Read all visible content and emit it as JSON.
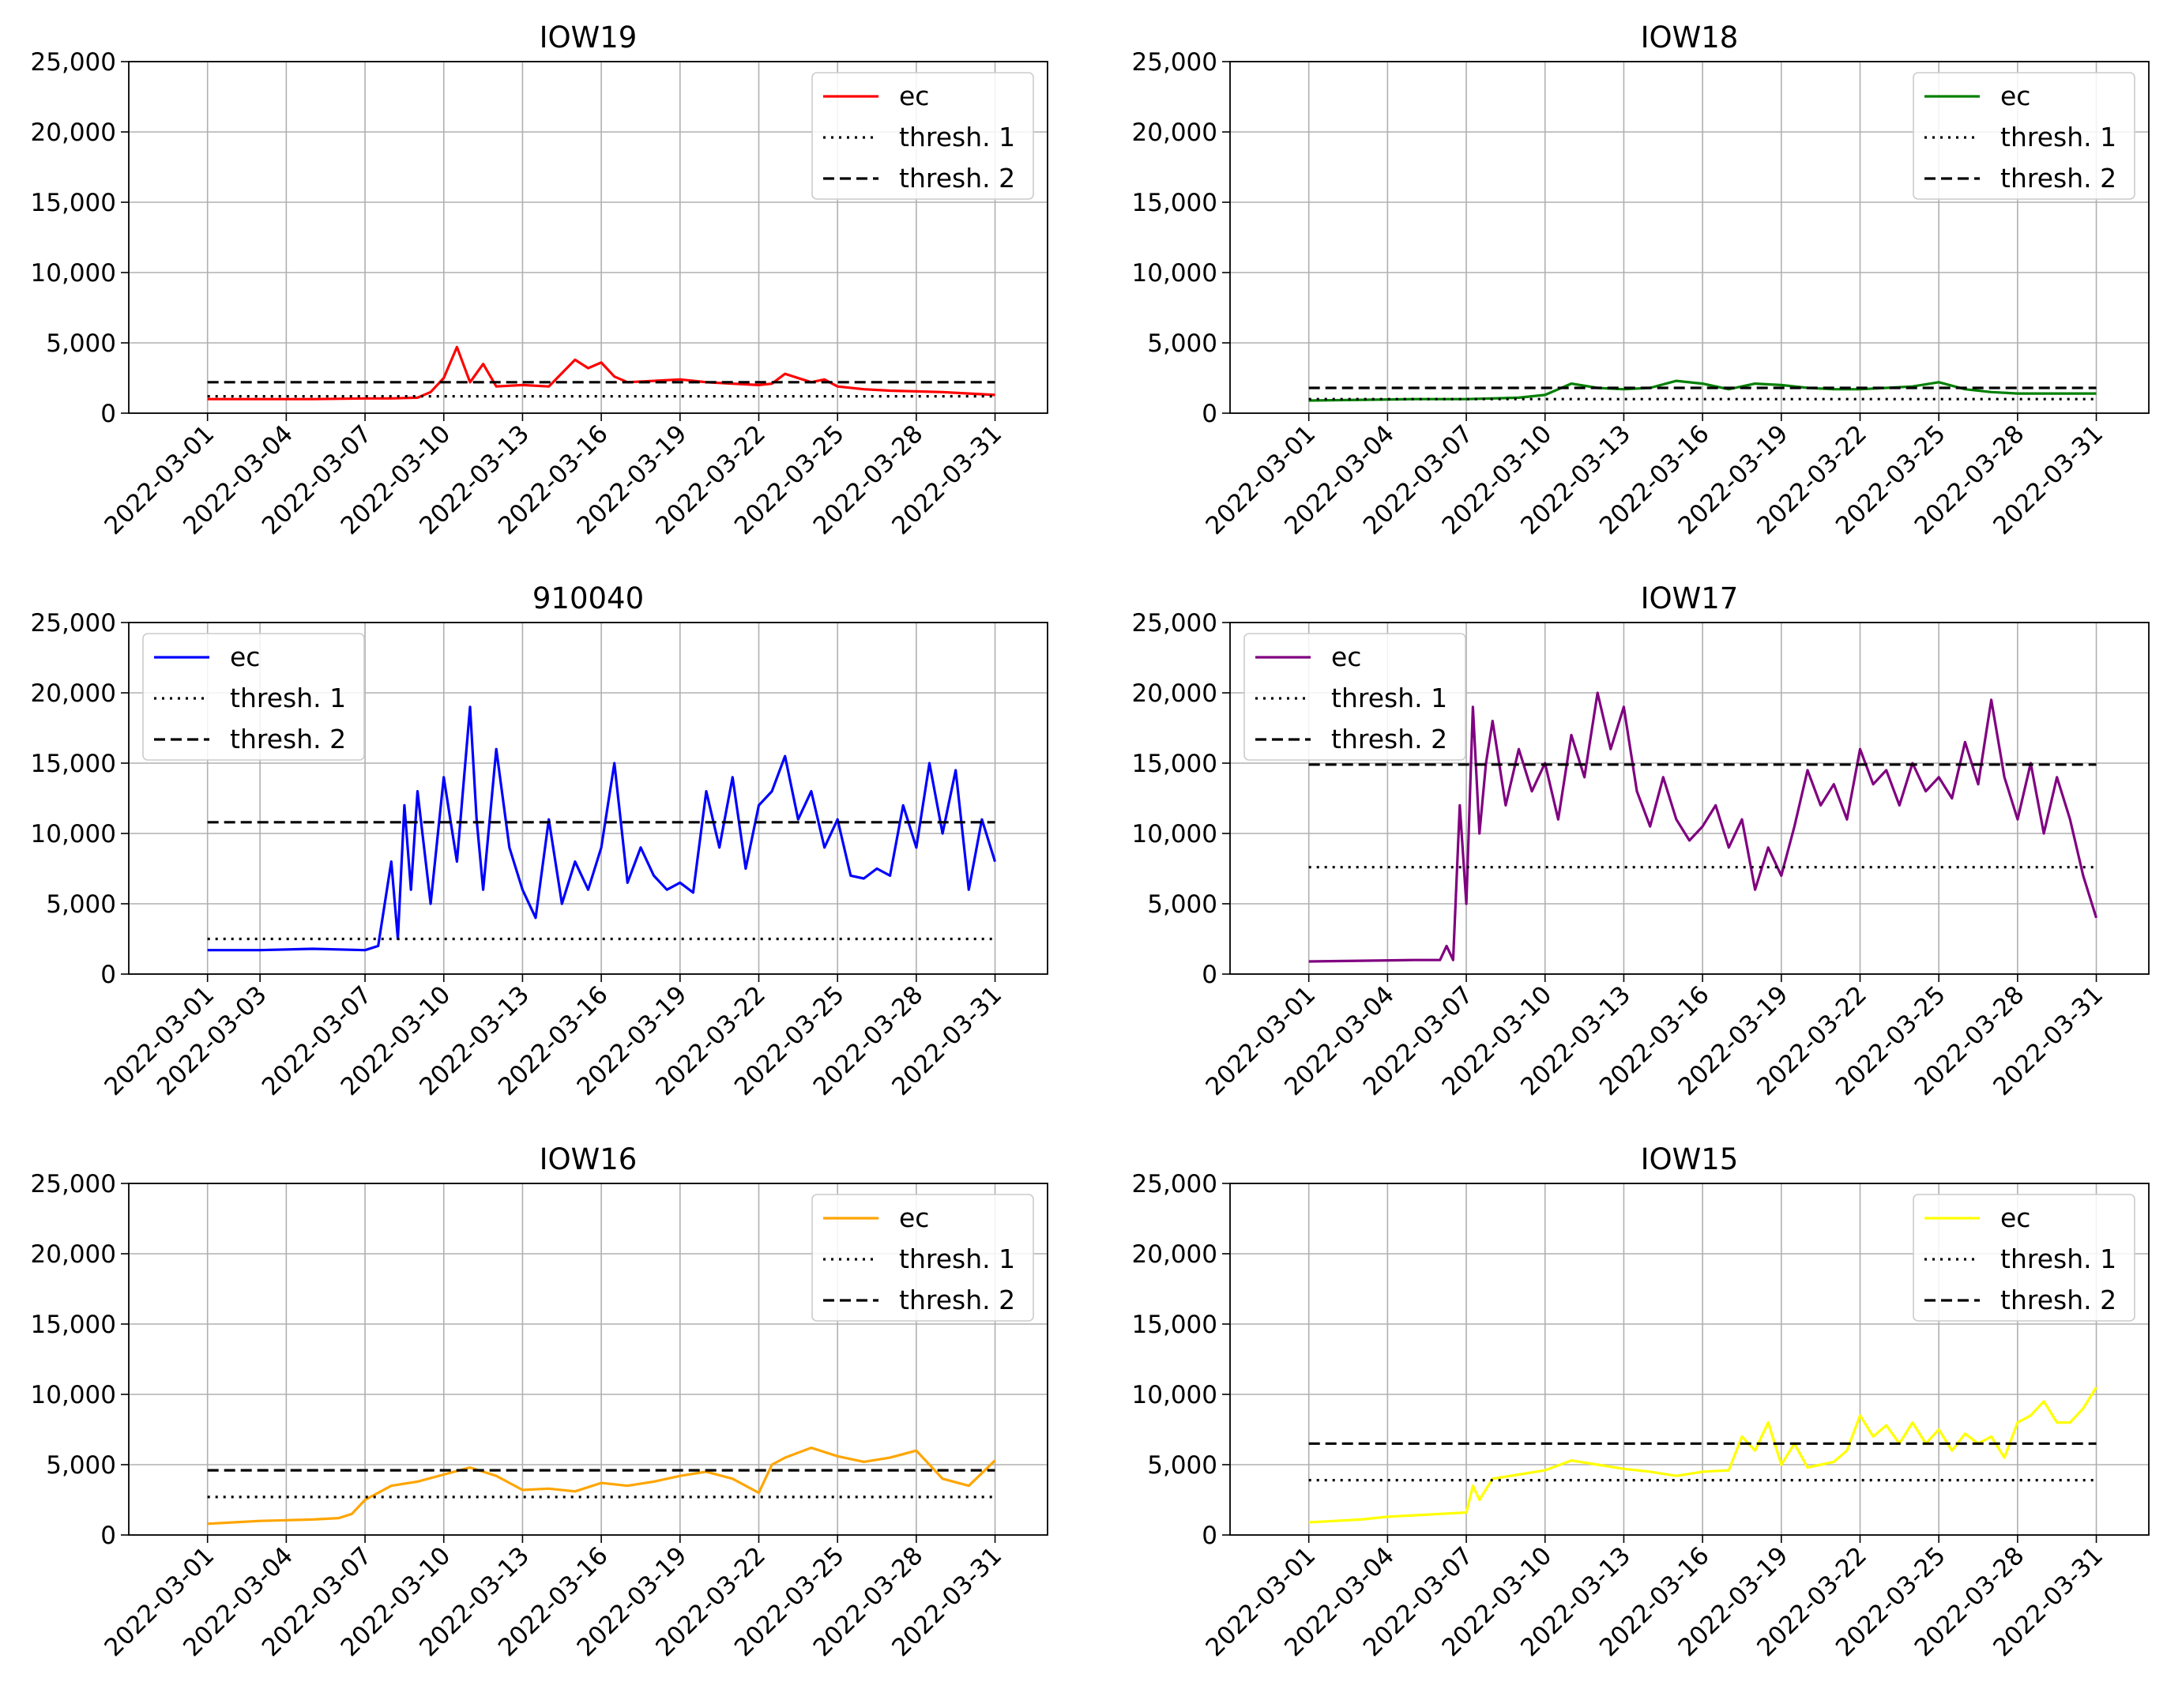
{
  "chart_data": [
    {
      "type": "line",
      "title": "IOW19",
      "ylim": [
        0,
        25000
      ],
      "yticks": [
        0,
        5000,
        10000,
        15000,
        20000,
        25000
      ],
      "ytick_labels": [
        "0",
        "5,000",
        "10,000",
        "15,000",
        "20,000",
        "25,000"
      ],
      "xlim": [
        "2022-02-26",
        "2022-04-02"
      ],
      "xtick_labels": [
        "2022-03-01",
        "2022-03-04",
        "2022-03-07",
        "2022-03-10",
        "2022-03-13",
        "2022-03-16",
        "2022-03-19",
        "2022-03-22",
        "2022-03-25",
        "2022-03-28",
        "2022-03-31"
      ],
      "grid": true,
      "legend_position": "upper-right",
      "colors": {
        "ec": "#ff0000",
        "threshold": "#000000"
      },
      "series": [
        {
          "name": "ec",
          "x": [
            "2022-03-01",
            "2022-03-03",
            "2022-03-05",
            "2022-03-07",
            "2022-03-08",
            "2022-03-09",
            "2022-03-09 12:00",
            "2022-03-10",
            "2022-03-10 12:00",
            "2022-03-11",
            "2022-03-11 12:00",
            "2022-03-12",
            "2022-03-13",
            "2022-03-14",
            "2022-03-15",
            "2022-03-15 12:00",
            "2022-03-16",
            "2022-03-16 12:00",
            "2022-03-17",
            "2022-03-18",
            "2022-03-19",
            "2022-03-20",
            "2022-03-21",
            "2022-03-22",
            "2022-03-22 12:00",
            "2022-03-23",
            "2022-03-24",
            "2022-03-24 12:00",
            "2022-03-25",
            "2022-03-26",
            "2022-03-27",
            "2022-03-28",
            "2022-03-29",
            "2022-03-30",
            "2022-03-31"
          ],
          "y": [
            1000,
            1000,
            1000,
            1050,
            1050,
            1100,
            1500,
            2500,
            4700,
            2200,
            3500,
            1900,
            2000,
            1900,
            3800,
            3200,
            3600,
            2600,
            2200,
            2300,
            2400,
            2200,
            2100,
            2000,
            2100,
            2800,
            2200,
            2400,
            1900,
            1700,
            1600,
            1550,
            1500,
            1400,
            1300
          ]
        },
        {
          "name": "thresh. 1",
          "x": [
            "2022-03-01",
            "2022-03-31"
          ],
          "y": [
            1200,
            1200
          ]
        },
        {
          "name": "thresh. 2",
          "x": [
            "2022-03-01",
            "2022-03-31"
          ],
          "y": [
            2200,
            2200
          ]
        }
      ]
    },
    {
      "type": "line",
      "title": "IOW18",
      "ylim": [
        0,
        25000
      ],
      "yticks": [
        0,
        5000,
        10000,
        15000,
        20000,
        25000
      ],
      "ytick_labels": [
        "0",
        "5,000",
        "10,000",
        "15,000",
        "20,000",
        "25,000"
      ],
      "xlim": [
        "2022-02-26",
        "2022-04-02"
      ],
      "xtick_labels": [
        "2022-03-01",
        "2022-03-04",
        "2022-03-07",
        "2022-03-10",
        "2022-03-13",
        "2022-03-16",
        "2022-03-19",
        "2022-03-22",
        "2022-03-25",
        "2022-03-28",
        "2022-03-31"
      ],
      "grid": true,
      "legend_position": "upper-right",
      "colors": {
        "ec": "#008000",
        "threshold": "#000000"
      },
      "series": [
        {
          "name": "ec",
          "x": [
            "2022-03-01",
            "2022-03-03",
            "2022-03-05",
            "2022-03-07",
            "2022-03-09",
            "2022-03-10",
            "2022-03-11",
            "2022-03-12",
            "2022-03-13",
            "2022-03-14",
            "2022-03-15",
            "2022-03-16",
            "2022-03-17",
            "2022-03-18",
            "2022-03-19",
            "2022-03-20",
            "2022-03-21",
            "2022-03-22",
            "2022-03-23",
            "2022-03-24",
            "2022-03-25",
            "2022-03-26",
            "2022-03-27",
            "2022-03-28",
            "2022-03-29",
            "2022-03-30",
            "2022-03-31"
          ],
          "y": [
            900,
            950,
            1000,
            1000,
            1100,
            1300,
            2100,
            1800,
            1700,
            1800,
            2300,
            2100,
            1700,
            2100,
            2000,
            1800,
            1700,
            1700,
            1800,
            1900,
            2200,
            1700,
            1500,
            1400,
            1400,
            1400,
            1400
          ]
        },
        {
          "name": "thresh. 1",
          "x": [
            "2022-03-01",
            "2022-03-31"
          ],
          "y": [
            1000,
            1000
          ]
        },
        {
          "name": "thresh. 2",
          "x": [
            "2022-03-01",
            "2022-03-31"
          ],
          "y": [
            1800,
            1800
          ]
        }
      ]
    },
    {
      "type": "line",
      "title": "910040",
      "ylim": [
        0,
        25000
      ],
      "yticks": [
        0,
        5000,
        10000,
        15000,
        20000,
        25000
      ],
      "ytick_labels": [
        "0",
        "5,000",
        "10,000",
        "15,000",
        "20,000",
        "25,000"
      ],
      "xlim": [
        "2022-02-26",
        "2022-04-02"
      ],
      "xtick_labels": [
        "2022-03-01",
        "2022-03-03",
        "2022-03-07",
        "2022-03-10",
        "2022-03-13",
        "2022-03-16",
        "2022-03-19",
        "2022-03-22",
        "2022-03-25",
        "2022-03-28",
        "2022-03-31"
      ],
      "grid": true,
      "legend_position": "upper-left",
      "colors": {
        "ec": "#0000ff",
        "threshold": "#000000"
      },
      "series": [
        {
          "name": "ec",
          "x": [
            "2022-03-01",
            "2022-03-03",
            "2022-03-05",
            "2022-03-07",
            "2022-03-07 12:00",
            "2022-03-08",
            "2022-03-08 06:00",
            "2022-03-08 12:00",
            "2022-03-08 18:00",
            "2022-03-09",
            "2022-03-09 12:00",
            "2022-03-10",
            "2022-03-10 06:00",
            "2022-03-10 12:00",
            "2022-03-11",
            "2022-03-11 06:00",
            "2022-03-11 12:00",
            "2022-03-12",
            "2022-03-12 12:00",
            "2022-03-13",
            "2022-03-13 12:00",
            "2022-03-14",
            "2022-03-14 12:00",
            "2022-03-15",
            "2022-03-15 12:00",
            "2022-03-16",
            "2022-03-16 12:00",
            "2022-03-17",
            "2022-03-17 12:00",
            "2022-03-18",
            "2022-03-18 12:00",
            "2022-03-19",
            "2022-03-19 12:00",
            "2022-03-20",
            "2022-03-20 12:00",
            "2022-03-21",
            "2022-03-21 12:00",
            "2022-03-22",
            "2022-03-22 12:00",
            "2022-03-23",
            "2022-03-23 12:00",
            "2022-03-24",
            "2022-03-24 12:00",
            "2022-03-25",
            "2022-03-25 12:00",
            "2022-03-26",
            "2022-03-26 12:00",
            "2022-03-27",
            "2022-03-27 12:00",
            "2022-03-28",
            "2022-03-28 12:00",
            "2022-03-29",
            "2022-03-29 12:00",
            "2022-03-30",
            "2022-03-30 12:00",
            "2022-03-31"
          ],
          "y": [
            1700,
            1700,
            1800,
            1700,
            2000,
            8000,
            2500,
            12000,
            6000,
            13000,
            5000,
            14000,
            11000,
            8000,
            19000,
            11000,
            6000,
            16000,
            9000,
            6000,
            4000,
            11000,
            5000,
            8000,
            6000,
            9000,
            15000,
            6500,
            9000,
            7000,
            6000,
            6500,
            5800,
            13000,
            9000,
            14000,
            7500,
            12000,
            13000,
            15500,
            11000,
            13000,
            9000,
            11000,
            7000,
            6800,
            7500,
            7000,
            12000,
            9000,
            15000,
            10000,
            14500,
            6000,
            11000,
            8000
          ]
        },
        {
          "name": "thresh. 1",
          "x": [
            "2022-03-01",
            "2022-03-31"
          ],
          "y": [
            2500,
            2500
          ]
        },
        {
          "name": "thresh. 2",
          "x": [
            "2022-03-01",
            "2022-03-31"
          ],
          "y": [
            10800,
            10800
          ]
        }
      ]
    },
    {
      "type": "line",
      "title": "IOW17",
      "ylim": [
        0,
        25000
      ],
      "yticks": [
        0,
        5000,
        10000,
        15000,
        20000,
        25000
      ],
      "ytick_labels": [
        "0",
        "5,000",
        "10,000",
        "15,000",
        "20,000",
        "25,000"
      ],
      "xlim": [
        "2022-02-26",
        "2022-04-02"
      ],
      "xtick_labels": [
        "2022-03-01",
        "2022-03-04",
        "2022-03-07",
        "2022-03-10",
        "2022-03-13",
        "2022-03-16",
        "2022-03-19",
        "2022-03-22",
        "2022-03-25",
        "2022-03-28",
        "2022-03-31"
      ],
      "grid": true,
      "legend_position": "upper-left",
      "colors": {
        "ec": "#800080",
        "threshold": "#000000"
      },
      "series": [
        {
          "name": "ec",
          "x": [
            "2022-03-01",
            "2022-03-03",
            "2022-03-05",
            "2022-03-06",
            "2022-03-06 06:00",
            "2022-03-06 12:00",
            "2022-03-06 18:00",
            "2022-03-07",
            "2022-03-07 06:00",
            "2022-03-07 12:00",
            "2022-03-07 18:00",
            "2022-03-08",
            "2022-03-08 12:00",
            "2022-03-09",
            "2022-03-09 12:00",
            "2022-03-10",
            "2022-03-10 12:00",
            "2022-03-11",
            "2022-03-11 12:00",
            "2022-03-12",
            "2022-03-12 12:00",
            "2022-03-13",
            "2022-03-13 12:00",
            "2022-03-14",
            "2022-03-14 12:00",
            "2022-03-15",
            "2022-03-15 12:00",
            "2022-03-16",
            "2022-03-16 12:00",
            "2022-03-17",
            "2022-03-17 12:00",
            "2022-03-18",
            "2022-03-18 12:00",
            "2022-03-19",
            "2022-03-19 12:00",
            "2022-03-20",
            "2022-03-20 12:00",
            "2022-03-21",
            "2022-03-21 12:00",
            "2022-03-22",
            "2022-03-22 12:00",
            "2022-03-23",
            "2022-03-23 12:00",
            "2022-03-24",
            "2022-03-24 12:00",
            "2022-03-25",
            "2022-03-25 12:00",
            "2022-03-26",
            "2022-03-26 12:00",
            "2022-03-27",
            "2022-03-27 12:00",
            "2022-03-28",
            "2022-03-28 12:00",
            "2022-03-29",
            "2022-03-29 12:00",
            "2022-03-30",
            "2022-03-30 12:00",
            "2022-03-31"
          ],
          "y": [
            900,
            950,
            1000,
            1000,
            2000,
            1000,
            12000,
            5000,
            19000,
            10000,
            15000,
            18000,
            12000,
            16000,
            13000,
            15000,
            11000,
            17000,
            14000,
            20000,
            16000,
            19000,
            13000,
            10500,
            14000,
            11000,
            9500,
            10500,
            12000,
            9000,
            11000,
            6000,
            9000,
            7000,
            10500,
            14500,
            12000,
            13500,
            11000,
            16000,
            13500,
            14500,
            12000,
            15000,
            13000,
            14000,
            12500,
            16500,
            13500,
            19500,
            14000,
            11000,
            15000,
            10000,
            14000,
            11000,
            7000,
            4000
          ]
        },
        {
          "name": "thresh. 1",
          "x": [
            "2022-03-01",
            "2022-03-31"
          ],
          "y": [
            7600,
            7600
          ]
        },
        {
          "name": "thresh. 2",
          "x": [
            "2022-03-01",
            "2022-03-31"
          ],
          "y": [
            14900,
            14900
          ]
        }
      ]
    },
    {
      "type": "line",
      "title": "IOW16",
      "ylim": [
        0,
        25000
      ],
      "yticks": [
        0,
        5000,
        10000,
        15000,
        20000,
        25000
      ],
      "ytick_labels": [
        "0",
        "5,000",
        "10,000",
        "15,000",
        "20,000",
        "25,000"
      ],
      "xlim": [
        "2022-02-26",
        "2022-04-02"
      ],
      "xtick_labels": [
        "2022-03-01",
        "2022-03-04",
        "2022-03-07",
        "2022-03-10",
        "2022-03-13",
        "2022-03-16",
        "2022-03-19",
        "2022-03-22",
        "2022-03-25",
        "2022-03-28",
        "2022-03-31"
      ],
      "grid": true,
      "legend_position": "upper-right",
      "colors": {
        "ec": "#ffa500",
        "threshold": "#000000"
      },
      "series": [
        {
          "name": "ec",
          "x": [
            "2022-03-01",
            "2022-03-02",
            "2022-03-03",
            "2022-03-04",
            "2022-03-05",
            "2022-03-06",
            "2022-03-06 12:00",
            "2022-03-07",
            "2022-03-08",
            "2022-03-09",
            "2022-03-10",
            "2022-03-11",
            "2022-03-12",
            "2022-03-13",
            "2022-03-14",
            "2022-03-15",
            "2022-03-16",
            "2022-03-17",
            "2022-03-18",
            "2022-03-19",
            "2022-03-20",
            "2022-03-21",
            "2022-03-22",
            "2022-03-22 12:00",
            "2022-03-23",
            "2022-03-24",
            "2022-03-25",
            "2022-03-26",
            "2022-03-27",
            "2022-03-28",
            "2022-03-29",
            "2022-03-30",
            "2022-03-31"
          ],
          "y": [
            800,
            900,
            1000,
            1050,
            1100,
            1200,
            1500,
            2500,
            3500,
            3800,
            4300,
            4800,
            4200,
            3200,
            3300,
            3100,
            3700,
            3500,
            3800,
            4200,
            4500,
            4000,
            3000,
            5000,
            5500,
            6200,
            5600,
            5200,
            5500,
            6000,
            4000,
            3500,
            5300
          ]
        },
        {
          "name": "thresh. 1",
          "x": [
            "2022-03-01",
            "2022-03-31"
          ],
          "y": [
            2700,
            2700
          ]
        },
        {
          "name": "thresh. 2",
          "x": [
            "2022-03-01",
            "2022-03-31"
          ],
          "y": [
            4600,
            4600
          ]
        }
      ]
    },
    {
      "type": "line",
      "title": "IOW15",
      "ylim": [
        0,
        25000
      ],
      "yticks": [
        0,
        5000,
        10000,
        15000,
        20000,
        25000
      ],
      "ytick_labels": [
        "0",
        "5,000",
        "10,000",
        "15,000",
        "20,000",
        "25,000"
      ],
      "xlim": [
        "2022-02-26",
        "2022-04-02"
      ],
      "xtick_labels": [
        "2022-03-01",
        "2022-03-04",
        "2022-03-07",
        "2022-03-10",
        "2022-03-13",
        "2022-03-16",
        "2022-03-19",
        "2022-03-22",
        "2022-03-25",
        "2022-03-28",
        "2022-03-31"
      ],
      "grid": true,
      "legend_position": "upper-right",
      "colors": {
        "ec": "#ffff00",
        "threshold": "#000000"
      },
      "series": [
        {
          "name": "ec",
          "x": [
            "2022-03-01",
            "2022-03-02",
            "2022-03-03",
            "2022-03-04",
            "2022-03-05",
            "2022-03-06",
            "2022-03-07",
            "2022-03-07 06:00",
            "2022-03-07 12:00",
            "2022-03-08",
            "2022-03-09",
            "2022-03-10",
            "2022-03-11",
            "2022-03-12",
            "2022-03-13",
            "2022-03-14",
            "2022-03-15",
            "2022-03-16",
            "2022-03-17",
            "2022-03-17 12:00",
            "2022-03-18",
            "2022-03-18 12:00",
            "2022-03-19",
            "2022-03-19 12:00",
            "2022-03-20",
            "2022-03-21",
            "2022-03-21 12:00",
            "2022-03-22",
            "2022-03-22 12:00",
            "2022-03-23",
            "2022-03-23 12:00",
            "2022-03-24",
            "2022-03-24 12:00",
            "2022-03-25",
            "2022-03-25 12:00",
            "2022-03-26",
            "2022-03-26 12:00",
            "2022-03-27",
            "2022-03-27 12:00",
            "2022-03-28",
            "2022-03-28 12:00",
            "2022-03-29",
            "2022-03-29 12:00",
            "2022-03-30",
            "2022-03-30 12:00",
            "2022-03-31"
          ],
          "y": [
            900,
            1000,
            1100,
            1300,
            1400,
            1500,
            1600,
            3500,
            2500,
            4000,
            4300,
            4600,
            5300,
            5000,
            4700,
            4500,
            4200,
            4500,
            4600,
            7000,
            6000,
            8000,
            5000,
            6500,
            4800,
            5200,
            6000,
            8500,
            7000,
            7800,
            6500,
            8000,
            6500,
            7500,
            6000,
            7200,
            6500,
            7000,
            5500,
            8000,
            8500,
            9500,
            8000,
            8000,
            9000,
            10500
          ]
        },
        {
          "name": "thresh. 1",
          "x": [
            "2022-03-01",
            "2022-03-31"
          ],
          "y": [
            3900,
            3900
          ]
        },
        {
          "name": "thresh. 2",
          "x": [
            "2022-03-01",
            "2022-03-31"
          ],
          "y": [
            6500,
            6500
          ]
        }
      ]
    }
  ]
}
